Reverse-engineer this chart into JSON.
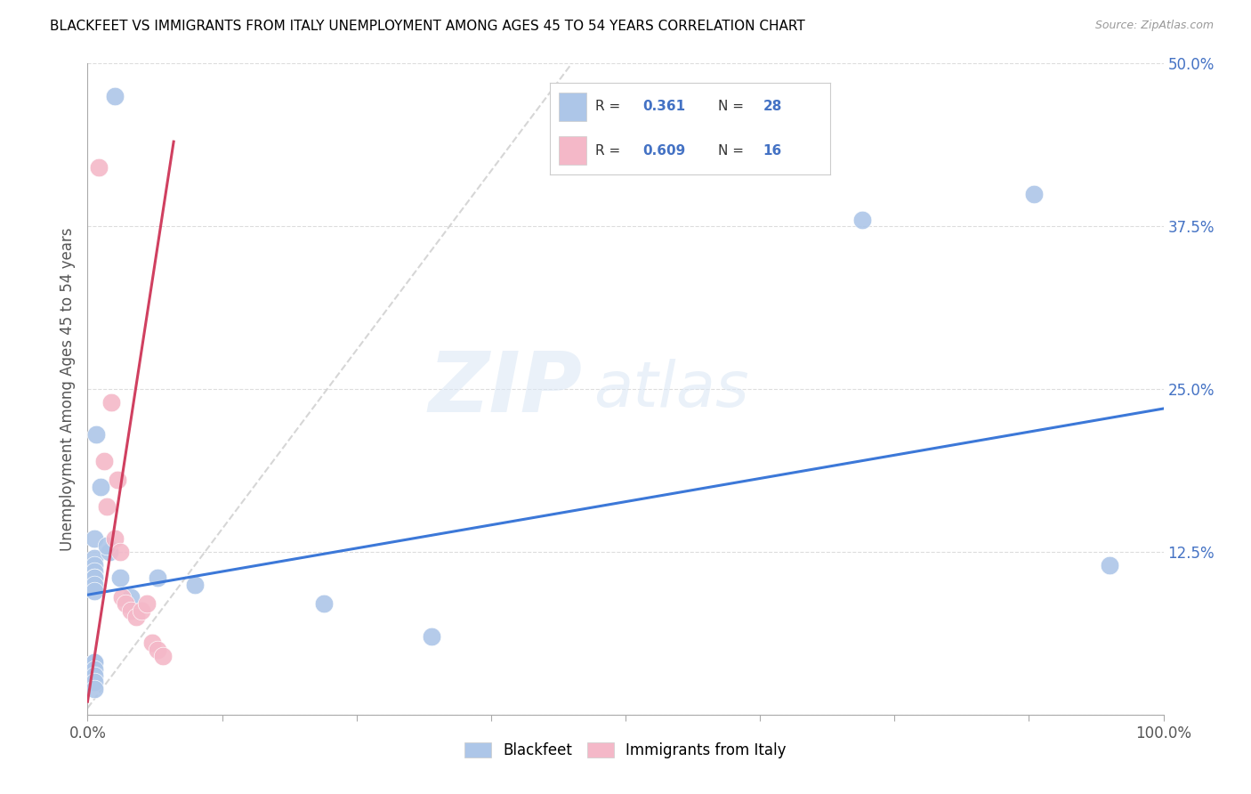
{
  "title": "BLACKFEET VS IMMIGRANTS FROM ITALY UNEMPLOYMENT AMONG AGES 45 TO 54 YEARS CORRELATION CHART",
  "source": "Source: ZipAtlas.com",
  "ylabel": "Unemployment Among Ages 45 to 54 years",
  "xmin": 0.0,
  "xmax": 1.0,
  "ymin": 0.0,
  "ymax": 0.5,
  "xticks": [
    0.0,
    0.125,
    0.25,
    0.375,
    0.5,
    0.625,
    0.75,
    0.875,
    1.0
  ],
  "xticklabels": [
    "0.0%",
    "",
    "",
    "",
    "",
    "",
    "",
    "",
    "100.0%"
  ],
  "yticks": [
    0.0,
    0.125,
    0.25,
    0.375,
    0.5
  ],
  "yticklabels": [
    "",
    "12.5%",
    "25.0%",
    "37.5%",
    "50.0%"
  ],
  "watermark_zip": "ZIP",
  "watermark_atlas": "atlas",
  "legend_r1_label": "R = ",
  "legend_r1_val": "0.361",
  "legend_n1_label": "N = ",
  "legend_n1_val": "28",
  "legend_r2_label": "R = ",
  "legend_r2_val": "0.609",
  "legend_n2_label": "N = ",
  "legend_n2_val": "16",
  "blackfeet_color": "#adc6e8",
  "italy_color": "#f4b8c8",
  "trendline_blue_color": "#3c78d8",
  "trendline_pink_color": "#d04060",
  "trendline_gray_color": "#cccccc",
  "blackfeet_scatter_x": [
    0.025,
    0.008,
    0.012,
    0.006,
    0.006,
    0.006,
    0.006,
    0.006,
    0.006,
    0.006,
    0.006,
    0.02,
    0.03,
    0.018,
    0.04,
    0.065,
    0.1,
    0.22,
    0.32,
    0.72,
    0.88,
    0.95,
    0.006,
    0.006,
    0.006,
    0.006,
    0.006,
    0.006
  ],
  "blackfeet_scatter_y": [
    0.475,
    0.215,
    0.175,
    0.135,
    0.12,
    0.115,
    0.11,
    0.105,
    0.105,
    0.1,
    0.095,
    0.125,
    0.105,
    0.13,
    0.09,
    0.105,
    0.1,
    0.085,
    0.06,
    0.38,
    0.4,
    0.115,
    0.04,
    0.04,
    0.035,
    0.03,
    0.025,
    0.02
  ],
  "italy_scatter_x": [
    0.01,
    0.015,
    0.018,
    0.022,
    0.025,
    0.028,
    0.03,
    0.032,
    0.035,
    0.04,
    0.045,
    0.05,
    0.055,
    0.06,
    0.065,
    0.07
  ],
  "italy_scatter_y": [
    0.42,
    0.195,
    0.16,
    0.24,
    0.135,
    0.18,
    0.125,
    0.09,
    0.085,
    0.08,
    0.075,
    0.08,
    0.085,
    0.055,
    0.05,
    0.045
  ],
  "blue_trend_x": [
    0.0,
    1.0
  ],
  "blue_trend_y": [
    0.092,
    0.235
  ],
  "pink_trend_x": [
    0.0,
    0.08
  ],
  "pink_trend_y": [
    0.01,
    0.44
  ],
  "gray_trend_x": [
    0.0,
    0.45
  ],
  "gray_trend_y": [
    0.005,
    0.5
  ],
  "bottom_legend_labels": [
    "Blackfeet",
    "Immigrants from Italy"
  ]
}
